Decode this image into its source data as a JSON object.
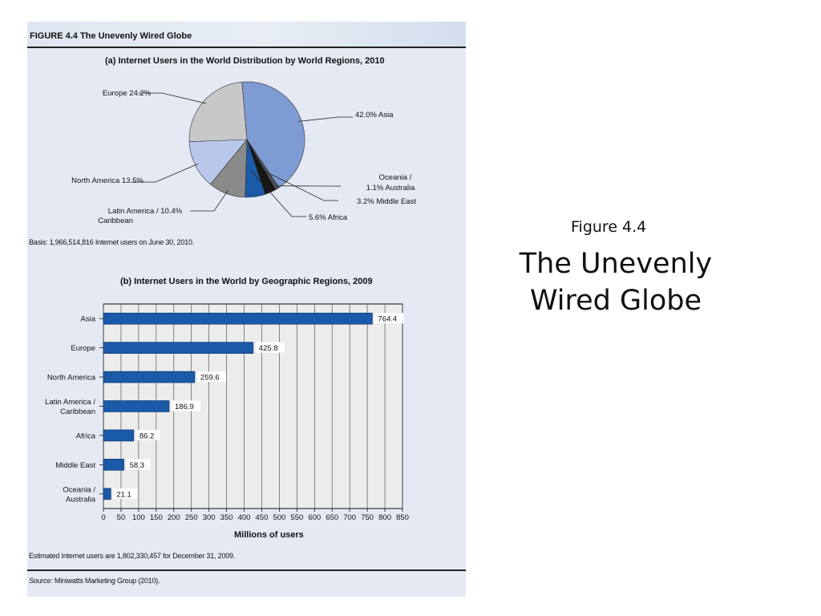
{
  "slide": {
    "subtitle": "Figure 4.4",
    "title_lines": [
      "The Unevenly",
      "Wired Globe"
    ]
  },
  "figure": {
    "title": "FIGURE 4.4 The Unevenly Wired Globe",
    "basis_note": "Basis: 1,966,514,816 Internet users on June 30, 2010.",
    "estimate_note": "Estimated Internet users are 1,802,330,457 for December 31, 2009.",
    "source_label": "Source:",
    "source_text": " Miniwatts Marketing Group (2010)."
  },
  "colors": {
    "panel_bg": "#e4e9f4",
    "bar_blue": "#1a5aa8",
    "plot_bg": "#ececec"
  },
  "chart_data": [
    {
      "type": "pie",
      "title": "(a) Internet Users in the World Distribution by World Regions, 2010",
      "slices": [
        {
          "name": "Asia",
          "value": 42.0,
          "color": "#7f9bd3",
          "label_lines": [
            "42.0% Asia"
          ]
        },
        {
          "name": "Oceania / Australia",
          "value": 1.1,
          "color": "#4f5256",
          "label_lines": [
            "Oceania /",
            "1.1%  Australia"
          ]
        },
        {
          "name": "Middle East",
          "value": 3.2,
          "color": "#161616",
          "label_lines": [
            "3.2%  Middle East"
          ]
        },
        {
          "name": "Africa",
          "value": 5.6,
          "color": "#1a5aa8",
          "label_lines": [
            "5.6%  Africa"
          ]
        },
        {
          "name": "Latin America / Caribbean",
          "value": 10.4,
          "color": "#8a8a8a",
          "label_lines": [
            "Latin America /  10.4%",
            "Caribbean"
          ]
        },
        {
          "name": "North America",
          "value": 13.5,
          "color": "#b8c7ea",
          "label_lines": [
            "North America  13.5%"
          ]
        },
        {
          "name": "Europe",
          "value": 24.2,
          "color": "#c8c8c8",
          "label_lines": [
            "Europe  24.2%"
          ]
        }
      ]
    },
    {
      "type": "bar",
      "orientation": "horizontal",
      "title": "(b) Internet Users in the World by Geographic Regions, 2009",
      "xlabel": "Millions of users",
      "xlim": [
        0,
        850
      ],
      "xticks": [
        0,
        50,
        100,
        150,
        200,
        250,
        300,
        350,
        400,
        450,
        500,
        550,
        600,
        650,
        700,
        750,
        800,
        850
      ],
      "grid": true,
      "categories": [
        [
          "Asia"
        ],
        [
          "Europe"
        ],
        [
          "North America"
        ],
        [
          "Latin America /",
          "Caribbean"
        ],
        [
          "Africa"
        ],
        [
          "Middle East"
        ],
        [
          "Oceania /",
          "Australia"
        ]
      ],
      "values": [
        764.4,
        425.8,
        259.6,
        186.9,
        86.2,
        58.3,
        21.1
      ],
      "value_labels": [
        "764.4",
        "425.8",
        "259.6",
        "186.9",
        "86.2",
        "58.3",
        "21.1"
      ]
    }
  ]
}
